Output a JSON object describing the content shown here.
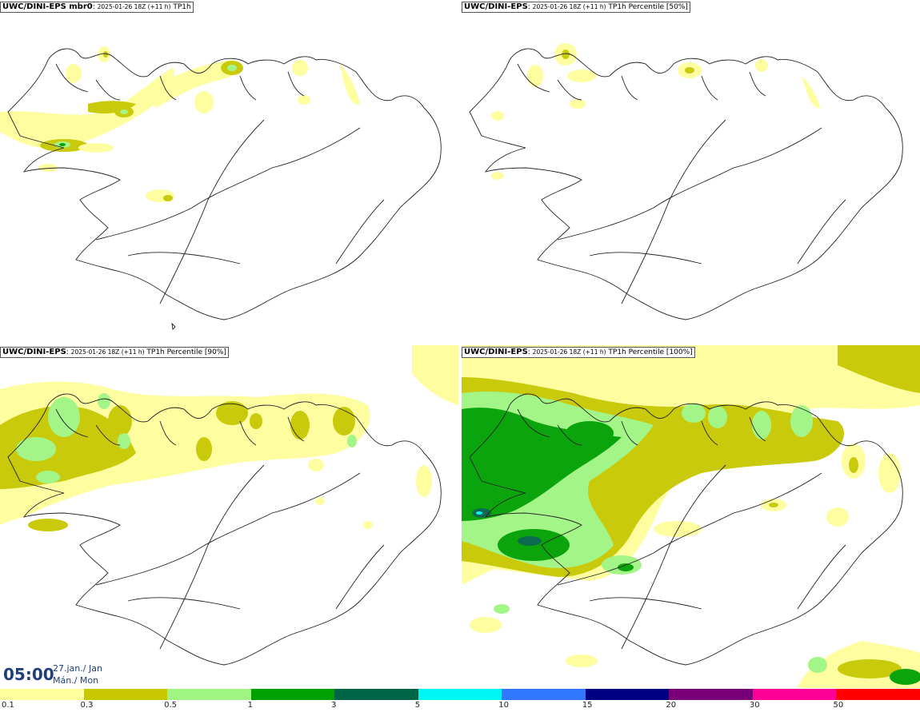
{
  "panels": [
    {
      "id": "tl",
      "model": "UWC/DINI-EPS mbr0",
      "run": "2025-01-26 18Z (+11 h)",
      "field": "TP1h"
    },
    {
      "id": "tr",
      "model": "UWC/DINI-EPS",
      "run": "2025-01-26 18Z (+11 h)",
      "field": "TP1h Percentile [50%]"
    },
    {
      "id": "bl",
      "model": "UWC/DINI-EPS",
      "run": "2025-01-26 18Z (+11 h)",
      "field": "TP1h Percentile [90%]"
    },
    {
      "id": "br",
      "model": "UWC/DINI-EPS",
      "run": "2025-01-26 18Z (+11 h)",
      "field": "TP1h Percentile [100%]"
    }
  ],
  "time": {
    "clock": "05:00",
    "date_line1": "27.jan./ Jan",
    "date_line2": "Mán./ Mon"
  },
  "legend": {
    "labels": [
      "0.1",
      "0.3",
      "0.5",
      "1",
      "3",
      "5",
      "10",
      "15",
      "20",
      "30",
      "50"
    ],
    "colors": [
      "#fefe9c",
      "#c8c800",
      "#a0f582",
      "#00a000",
      "#006446",
      "#00f5f5",
      "#3278ff",
      "#000082",
      "#780078",
      "#ff0096",
      "#ff0000"
    ]
  },
  "map_colors": {
    "light_yellow": "#fefe9c",
    "olive": "#c8c800",
    "light_green": "#a0f582",
    "green": "#00a000",
    "dark_green": "#006446",
    "coast": "#222222"
  }
}
